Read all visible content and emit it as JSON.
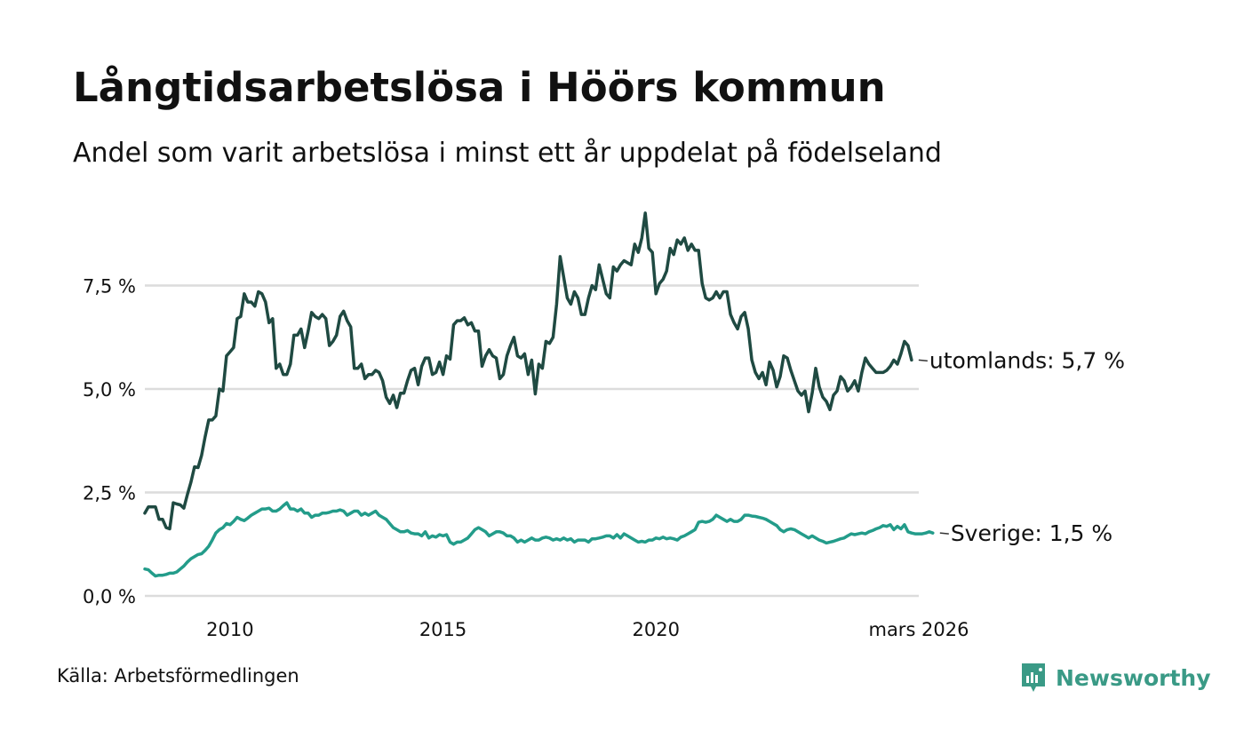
{
  "header": {
    "title": "Långtidsarbetslösa i Höörs kommun",
    "subtitle": "Andel som varit arbetslösa i minst ett år uppdelat på födelseland"
  },
  "footer": {
    "source": "Källa: Arbetsförmedlingen",
    "brand": "Newsworthy",
    "brand_color": "#3a9a86"
  },
  "chart_data": {
    "type": "line",
    "title": "Långtidsarbetslösa i Höörs kommun",
    "subtitle": "Andel som varit arbetslösa i minst ett år uppdelat på födelseland",
    "xlabel": "",
    "ylabel": "",
    "x_start": 2008.0,
    "x_step": 0.08333333,
    "xlim": [
      2008.0,
      2026.17
    ],
    "ylim": [
      0,
      9.4
    ],
    "grid": true,
    "x_ticks": [
      {
        "value": 2010,
        "label": "2010"
      },
      {
        "value": 2015,
        "label": "2015"
      },
      {
        "value": 2020,
        "label": "2020"
      },
      {
        "value": 2026.17,
        "label": "mars 2026"
      }
    ],
    "y_ticks": [
      {
        "value": 0,
        "label": "0,0 %"
      },
      {
        "value": 2.5,
        "label": "2,5 %"
      },
      {
        "value": 5,
        "label": "5,0 %"
      },
      {
        "value": 7.5,
        "label": "7,5 %"
      }
    ],
    "series": [
      {
        "name": "utomlands",
        "color": "#1f4a42",
        "end_label": "utomlands: 5,7 %",
        "values": [
          2.0,
          2.15,
          2.15,
          2.15,
          1.85,
          1.85,
          1.65,
          1.62,
          2.25,
          2.22,
          2.2,
          2.12,
          2.45,
          2.75,
          3.12,
          3.1,
          3.4,
          3.85,
          4.25,
          4.25,
          4.35,
          5.0,
          4.95,
          5.8,
          5.9,
          6.0,
          6.7,
          6.75,
          7.3,
          7.1,
          7.1,
          7.0,
          7.35,
          7.3,
          7.1,
          6.6,
          6.7,
          5.5,
          5.6,
          5.35,
          5.35,
          5.6,
          6.3,
          6.3,
          6.45,
          6.0,
          6.4,
          6.85,
          6.75,
          6.7,
          6.8,
          6.7,
          6.05,
          6.15,
          6.3,
          6.75,
          6.88,
          6.65,
          6.5,
          5.5,
          5.5,
          5.6,
          5.25,
          5.35,
          5.35,
          5.45,
          5.4,
          5.2,
          4.8,
          4.65,
          4.85,
          4.55,
          4.9,
          4.9,
          5.2,
          5.45,
          5.5,
          5.1,
          5.55,
          5.75,
          5.75,
          5.35,
          5.4,
          5.65,
          5.35,
          5.8,
          5.72,
          6.55,
          6.65,
          6.65,
          6.72,
          6.55,
          6.6,
          6.4,
          6.4,
          5.55,
          5.8,
          5.95,
          5.8,
          5.75,
          5.25,
          5.35,
          5.8,
          6.05,
          6.25,
          5.8,
          5.75,
          5.85,
          5.35,
          5.7,
          4.88,
          5.6,
          5.5,
          6.15,
          6.1,
          6.25,
          7.05,
          8.2,
          7.7,
          7.2,
          7.05,
          7.35,
          7.2,
          6.8,
          6.8,
          7.2,
          7.5,
          7.4,
          8.0,
          7.65,
          7.3,
          7.2,
          7.95,
          7.85,
          8.0,
          8.1,
          8.05,
          8.0,
          8.5,
          8.3,
          8.65,
          9.25,
          8.4,
          8.3,
          7.3,
          7.55,
          7.65,
          7.85,
          8.4,
          8.25,
          8.6,
          8.5,
          8.65,
          8.35,
          8.5,
          8.35,
          8.35,
          7.55,
          7.2,
          7.15,
          7.2,
          7.35,
          7.2,
          7.35,
          7.35,
          6.8,
          6.6,
          6.45,
          6.75,
          6.85,
          6.45,
          5.7,
          5.4,
          5.25,
          5.4,
          5.1,
          5.65,
          5.45,
          5.05,
          5.3,
          5.8,
          5.75,
          5.45,
          5.2,
          4.95,
          4.85,
          4.95,
          4.45,
          4.9,
          5.5,
          5.05,
          4.8,
          4.7,
          4.5,
          4.85,
          4.95,
          5.3,
          5.2,
          4.95,
          5.05,
          5.2,
          4.95,
          5.4,
          5.75,
          5.6,
          5.5,
          5.4,
          5.4,
          5.4,
          5.45,
          5.55,
          5.7,
          5.6,
          5.85,
          6.15,
          6.05,
          5.7
        ]
      },
      {
        "name": "Sverige",
        "color": "#239c8a",
        "end_label": "Sverige: 1,5 %",
        "values": [
          0.65,
          0.63,
          0.55,
          0.48,
          0.5,
          0.5,
          0.52,
          0.55,
          0.55,
          0.58,
          0.65,
          0.72,
          0.82,
          0.9,
          0.95,
          1.0,
          1.02,
          1.1,
          1.2,
          1.35,
          1.52,
          1.6,
          1.65,
          1.75,
          1.72,
          1.8,
          1.9,
          1.85,
          1.82,
          1.88,
          1.95,
          2.0,
          2.05,
          2.1,
          2.1,
          2.12,
          2.05,
          2.05,
          2.1,
          2.18,
          2.25,
          2.1,
          2.1,
          2.05,
          2.1,
          2.0,
          2.0,
          1.9,
          1.95,
          1.95,
          2.0,
          2.0,
          2.02,
          2.05,
          2.05,
          2.08,
          2.05,
          1.95,
          2.0,
          2.05,
          2.05,
          1.95,
          2.0,
          1.95,
          2.0,
          2.05,
          1.95,
          1.9,
          1.85,
          1.75,
          1.65,
          1.6,
          1.55,
          1.55,
          1.58,
          1.52,
          1.5,
          1.5,
          1.45,
          1.55,
          1.4,
          1.45,
          1.42,
          1.48,
          1.45,
          1.48,
          1.3,
          1.25,
          1.3,
          1.3,
          1.35,
          1.4,
          1.5,
          1.6,
          1.65,
          1.6,
          1.55,
          1.45,
          1.5,
          1.55,
          1.55,
          1.52,
          1.45,
          1.45,
          1.4,
          1.3,
          1.35,
          1.3,
          1.35,
          1.4,
          1.35,
          1.35,
          1.4,
          1.42,
          1.4,
          1.35,
          1.38,
          1.35,
          1.4,
          1.35,
          1.38,
          1.3,
          1.35,
          1.35,
          1.35,
          1.3,
          1.38,
          1.38,
          1.4,
          1.42,
          1.45,
          1.45,
          1.4,
          1.48,
          1.4,
          1.5,
          1.45,
          1.4,
          1.35,
          1.3,
          1.32,
          1.3,
          1.35,
          1.35,
          1.4,
          1.38,
          1.42,
          1.38,
          1.4,
          1.38,
          1.35,
          1.42,
          1.45,
          1.5,
          1.55,
          1.6,
          1.78,
          1.8,
          1.78,
          1.8,
          1.85,
          1.95,
          1.9,
          1.85,
          1.8,
          1.85,
          1.8,
          1.8,
          1.85,
          1.95,
          1.95,
          1.93,
          1.92,
          1.9,
          1.88,
          1.85,
          1.8,
          1.75,
          1.7,
          1.6,
          1.55,
          1.6,
          1.62,
          1.6,
          1.55,
          1.5,
          1.45,
          1.4,
          1.45,
          1.4,
          1.35,
          1.32,
          1.28,
          1.3,
          1.32,
          1.35,
          1.38,
          1.4,
          1.45,
          1.5,
          1.48,
          1.5,
          1.52,
          1.5,
          1.55,
          1.58,
          1.62,
          1.65,
          1.7,
          1.68,
          1.72,
          1.6,
          1.68,
          1.62,
          1.72,
          1.55,
          1.52,
          1.5,
          1.5,
          1.5,
          1.52,
          1.55,
          1.52
        ]
      }
    ]
  }
}
